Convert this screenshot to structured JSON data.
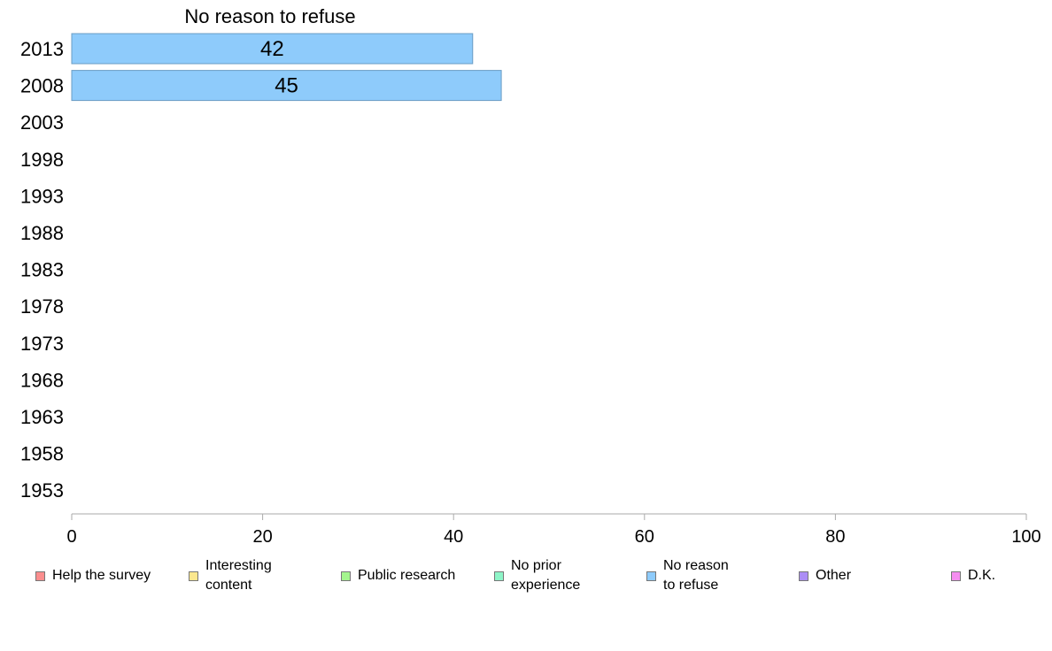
{
  "chart_data": {
    "type": "bar",
    "orientation": "horizontal",
    "stacked": true,
    "title": "No reason to refuse",
    "categories": [
      "2013",
      "2008",
      "2003",
      "1998",
      "1993",
      "1988",
      "1983",
      "1978",
      "1973",
      "1968",
      "1963",
      "1958",
      "1953"
    ],
    "series": [
      {
        "name": "Help the survey",
        "color": "#fb8e8e",
        "values": [
          null,
          null,
          null,
          null,
          null,
          null,
          null,
          null,
          null,
          null,
          null,
          null,
          null
        ]
      },
      {
        "name": "Interesting\ncontent",
        "color": "#fbe78e",
        "values": [
          null,
          null,
          null,
          null,
          null,
          null,
          null,
          null,
          null,
          null,
          null,
          null,
          null
        ]
      },
      {
        "name": "Public research",
        "color": "#a4f58e",
        "values": [
          null,
          null,
          null,
          null,
          null,
          null,
          null,
          null,
          null,
          null,
          null,
          null,
          null
        ]
      },
      {
        "name": "No prior\nexperience",
        "color": "#8ef5c8",
        "values": [
          null,
          null,
          null,
          null,
          null,
          null,
          null,
          null,
          null,
          null,
          null,
          null,
          null
        ]
      },
      {
        "name": "No reason\nto refuse",
        "color": "#8ecbfb",
        "values": [
          42,
          45,
          null,
          null,
          null,
          null,
          null,
          null,
          null,
          null,
          null,
          null,
          null
        ]
      },
      {
        "name": "Other",
        "color": "#ac8ef5",
        "values": [
          null,
          null,
          null,
          null,
          null,
          null,
          null,
          null,
          null,
          null,
          null,
          null,
          null
        ]
      },
      {
        "name": "D.K.",
        "color": "#f58ef0",
        "values": [
          null,
          null,
          null,
          null,
          null,
          null,
          null,
          null,
          null,
          null,
          null,
          null,
          null
        ]
      }
    ],
    "xlim": [
      0,
      100
    ],
    "xticks": [
      "0",
      "20",
      "40",
      "60",
      "80",
      "100"
    ],
    "grid": false,
    "legend_position": "bottom"
  }
}
